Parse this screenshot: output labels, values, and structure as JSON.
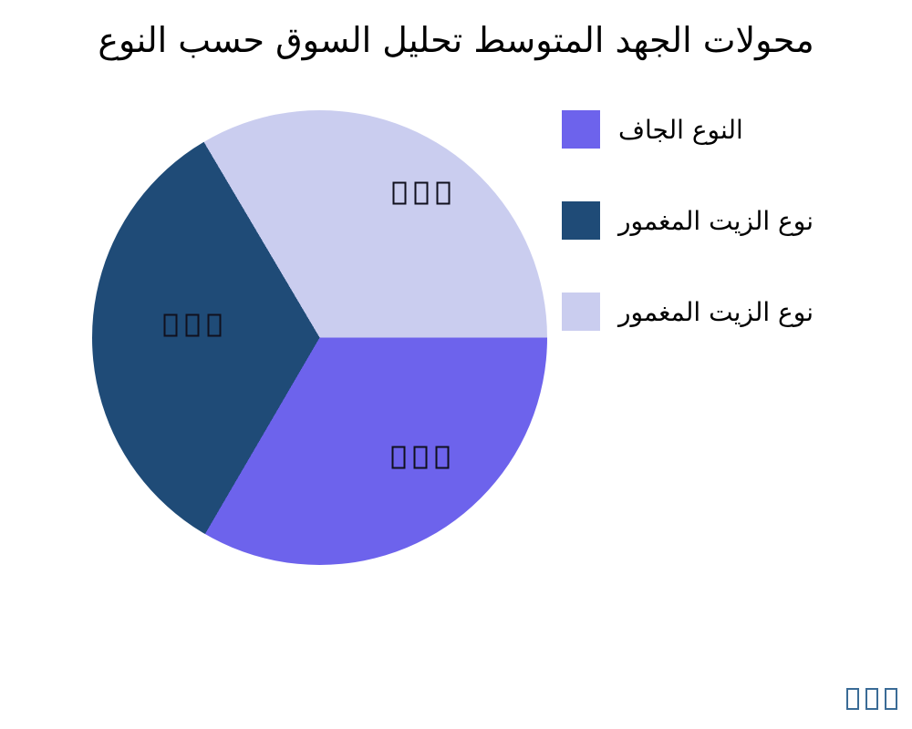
{
  "chart_data": {
    "type": "pie",
    "title": "محولات الجهد المتوسط تحليل السوق حسب النوع",
    "slices": [
      {
        "label": "النوع الجاف",
        "value": 33.4,
        "color": "#6D63EC",
        "data_label": "□□□"
      },
      {
        "label": "نوع الزيت المغمور",
        "value": 33.1,
        "color": "#1F4B77",
        "data_label": "□□□"
      },
      {
        "label": "نوع الزيت المغمور",
        "value": 33.5,
        "color": "#CACDEF",
        "data_label": "□□□"
      }
    ],
    "start_angle_deg": 0,
    "direction": "clockwise",
    "legend_position": "right",
    "data_label_note": "values rendered as missing-glyph boxes in source image"
  },
  "watermark": {
    "text": "□□□",
    "color": "#3A6B96"
  },
  "colors": {
    "background": "#FFFFFF",
    "title_text": "#000000",
    "slice_label_box_border": "#10101E"
  }
}
